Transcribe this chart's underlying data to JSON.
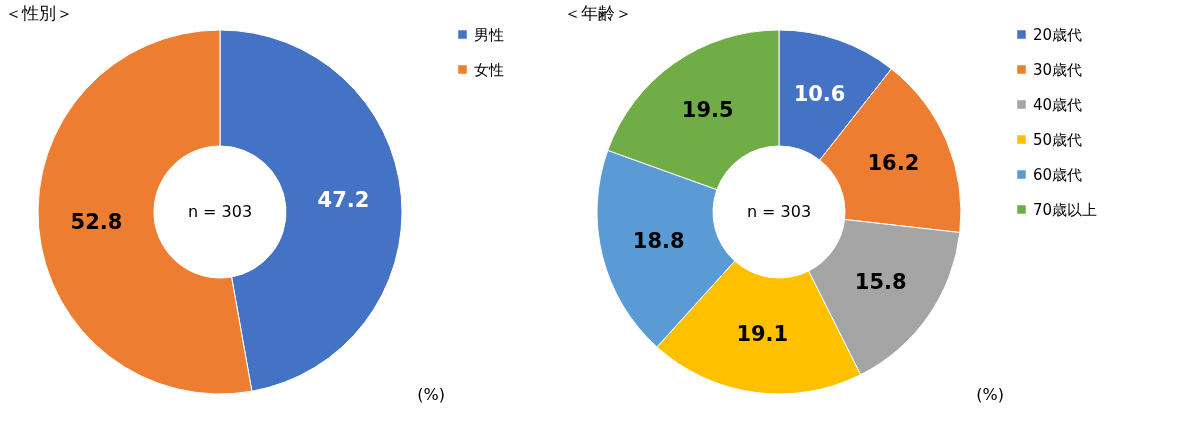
{
  "chart_data": [
    {
      "type": "donut",
      "title": "＜性別＞",
      "categories": [
        "男性",
        "女性"
      ],
      "values": [
        47.2,
        52.8
      ],
      "colors": [
        "#4472c4",
        "#ed7d31"
      ],
      "data_labels": true,
      "legend": "right",
      "annotations": [
        "n = 303",
        "(%)"
      ]
    },
    {
      "type": "donut",
      "title": "＜年齢＞",
      "categories": [
        "20歳代",
        "30歳代",
        "40歳代",
        "50歳代",
        "60歳代",
        "70歳以上"
      ],
      "values": [
        10.6,
        16.2,
        15.8,
        19.1,
        18.8,
        19.5
      ],
      "colors": [
        "#4472c4",
        "#ed7d31",
        "#a5a5a5",
        "#ffc000",
        "#5b9bd5",
        "#70ad47"
      ],
      "data_labels": true,
      "legend": "right",
      "annotations": [
        "n = 303",
        "(%)"
      ]
    }
  ]
}
